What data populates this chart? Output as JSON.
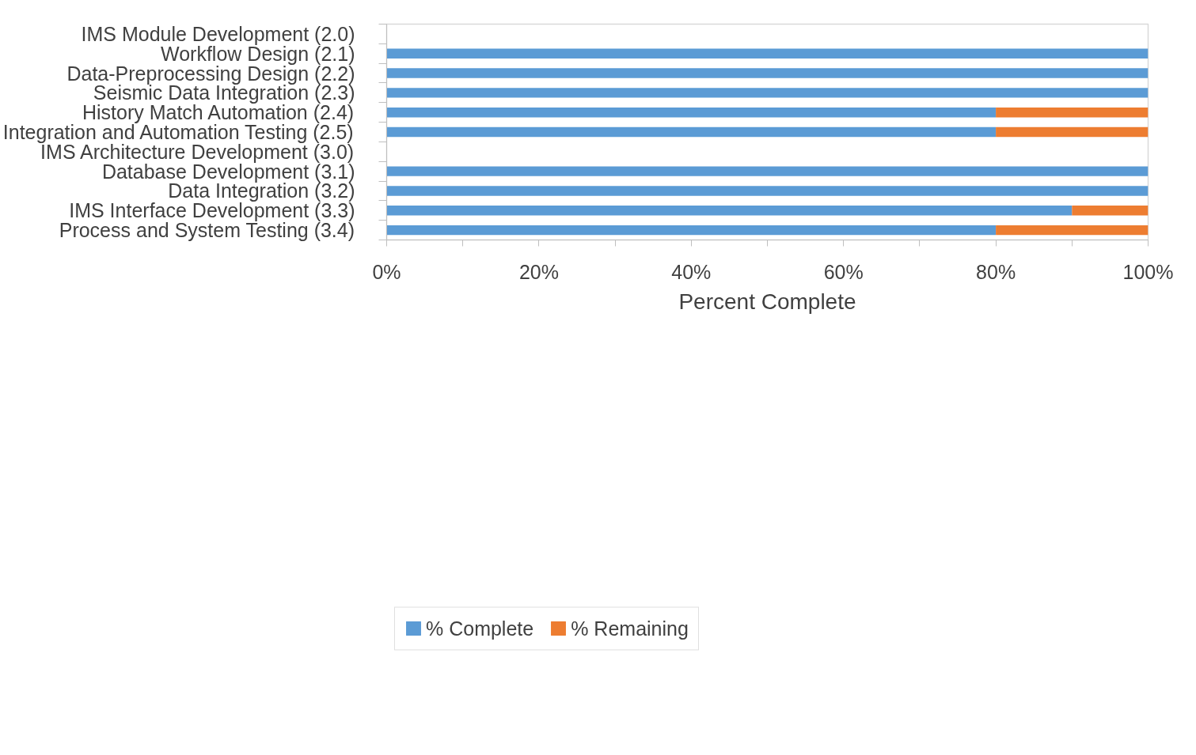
{
  "chart_data": {
    "type": "bar",
    "orientation": "horizontal",
    "stacked": true,
    "categories": [
      "IMS Module Development (2.0)",
      "Workflow Design (2.1)",
      "Data-Preprocessing Design (2.2)",
      "Seismic Data Integration (2.3)",
      "History Match Automation (2.4)",
      "Integration and Automation Testing (2.5)",
      "IMS Architecture Development (3.0)",
      "Database Development (3.1)",
      "Data Integration (3.2)",
      "IMS Interface Development (3.3)",
      "Process and System Testing (3.4)"
    ],
    "series": [
      {
        "name": "% Complete",
        "color": "#5b9bd5",
        "values": [
          null,
          100,
          100,
          100,
          80,
          80,
          null,
          100,
          100,
          90,
          80
        ]
      },
      {
        "name": "% Remaining",
        "color": "#ed7d31",
        "values": [
          null,
          0,
          0,
          0,
          20,
          20,
          null,
          0,
          0,
          10,
          20
        ]
      }
    ],
    "xlabel": "Percent Complete",
    "xlim": [
      0,
      100
    ],
    "xticks": [
      {
        "value": 0,
        "label": "0%"
      },
      {
        "value": 10,
        "label": null
      },
      {
        "value": 20,
        "label": "20%"
      },
      {
        "value": 30,
        "label": null
      },
      {
        "value": 40,
        "label": "40%"
      },
      {
        "value": 50,
        "label": null
      },
      {
        "value": 60,
        "label": "60%"
      },
      {
        "value": 70,
        "label": null
      },
      {
        "value": 80,
        "label": "80%"
      },
      {
        "value": 90,
        "label": null
      },
      {
        "value": 100,
        "label": "100%"
      }
    ],
    "grid": false,
    "legend": "bottom left"
  }
}
